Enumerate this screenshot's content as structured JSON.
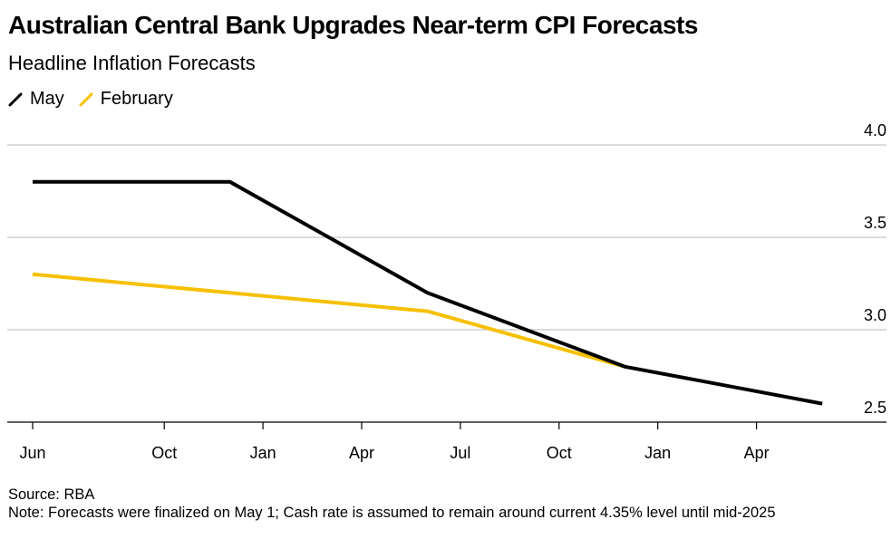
{
  "header": {
    "title": "Australian Central Bank Upgrades Near-term CPI Forecasts",
    "subtitle": "Headline Inflation Forecasts"
  },
  "footer": {
    "source": "Source: RBA",
    "note": "Note: Forecasts were finalized on May 1; Cash rate is assumed to remain around current 4.35% level until mid-2025"
  },
  "chart_data": {
    "type": "line",
    "title": "Australian Central Bank Upgrades Near-term CPI Forecasts",
    "subtitle": "Headline Inflation Forecasts",
    "legend_position": "top-left",
    "grid": true,
    "ylim": [
      2.5,
      4.0
    ],
    "yticks": [
      "4.0",
      "3.5",
      "3.0",
      "2.5"
    ],
    "y_axis_side": "right",
    "xticks": [
      {
        "label": "Jun",
        "date": "2023-06"
      },
      {
        "label": "Oct",
        "date": "2023-10"
      },
      {
        "label": "Jan",
        "date": "2024-01"
      },
      {
        "label": "Apr",
        "date": "2024-04"
      },
      {
        "label": "Jul",
        "date": "2024-07"
      },
      {
        "label": "Oct",
        "date": "2024-10"
      },
      {
        "label": "Jan",
        "date": "2025-01"
      },
      {
        "label": "Apr",
        "date": "2025-04"
      }
    ],
    "series": [
      {
        "name": "May",
        "color": "#000000",
        "points": [
          {
            "date": "2023-06",
            "value": 3.8
          },
          {
            "date": "2023-12",
            "value": 3.8
          },
          {
            "date": "2024-06",
            "value": 3.2
          },
          {
            "date": "2024-12",
            "value": 2.8
          },
          {
            "date": "2025-06",
            "value": 2.6
          }
        ]
      },
      {
        "name": "February",
        "color": "#f6c000",
        "points": [
          {
            "date": "2023-06",
            "value": 3.3
          },
          {
            "date": "2024-06",
            "value": 3.1
          },
          {
            "date": "2024-12",
            "value": 2.8
          }
        ]
      }
    ]
  }
}
